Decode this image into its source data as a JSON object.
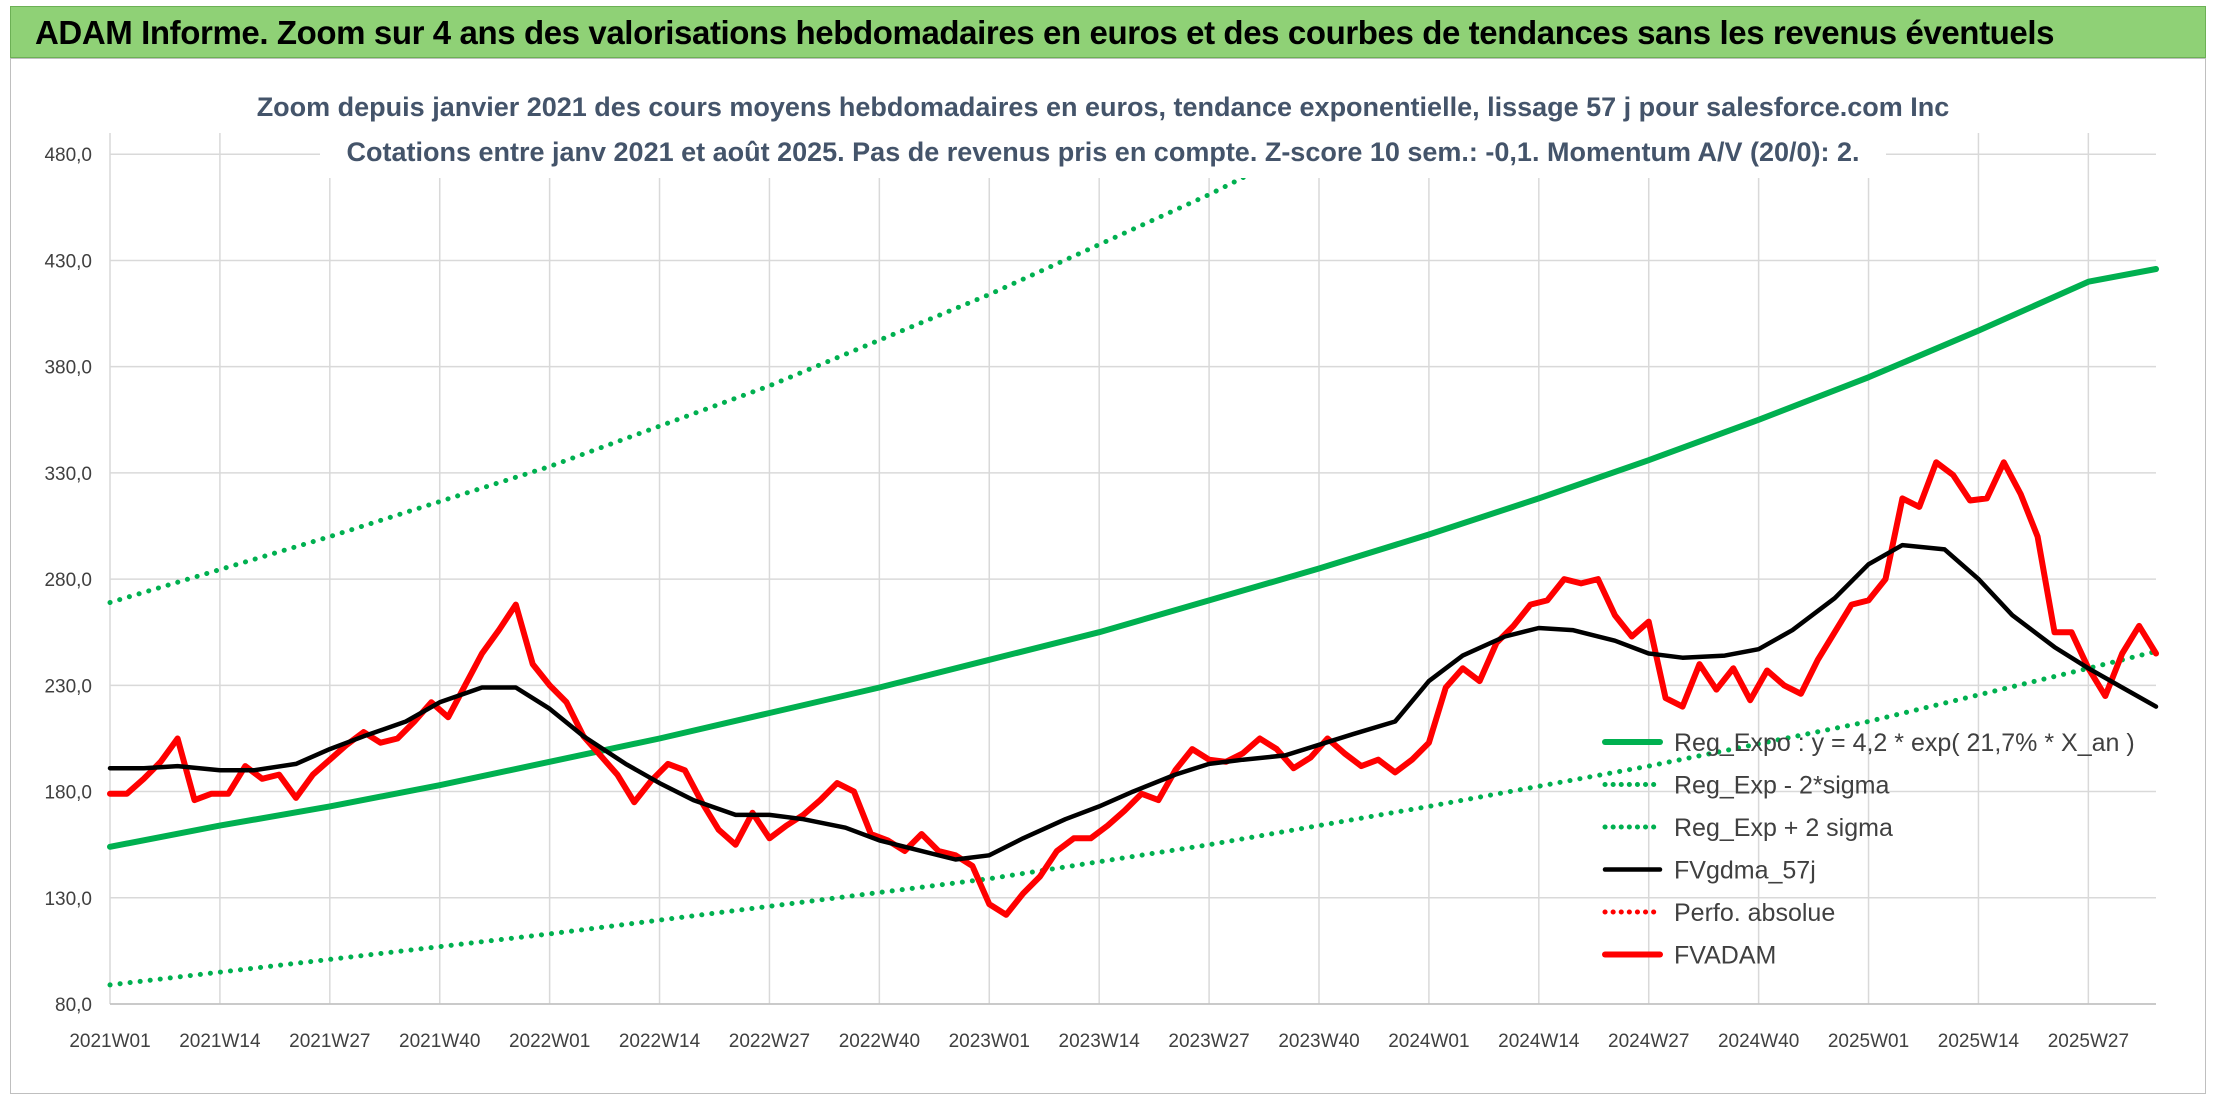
{
  "header": {
    "title": "ADAM Informe. Zoom sur 4 ans des valorisations hebdomadaires en euros et des courbes de tendances sans les revenus éventuels"
  },
  "colors": {
    "header_bg": "#8fd176",
    "reg_expo": "#00b050",
    "fvgdma": "#000000",
    "fvadam": "#ff0000",
    "perfo": "#ff0000",
    "subtitle": "#44546a"
  },
  "chart_data": {
    "type": "line",
    "title_line1": "Zoom depuis janvier 2021 des cours moyens hebdomadaires en euros, tendance exponentielle, lissage 57 j pour salesforce.com Inc",
    "title_line2": "Cotations entre janv 2021 et août 2025. Pas de revenus pris en compte. Z-score 10 sem.: -0,1. Momentum A/V (20/0): 2.",
    "x_ticks": [
      "2021W01",
      "2021W14",
      "2021W27",
      "2021W40",
      "2022W01",
      "2022W14",
      "2022W27",
      "2022W40",
      "2023W01",
      "2023W14",
      "2023W27",
      "2023W40",
      "2024W01",
      "2024W14",
      "2024W27",
      "2024W40",
      "2025W01",
      "2025W14",
      "2025W27"
    ],
    "y_ticks": [
      "80,0",
      "130,0",
      "180,0",
      "230,0",
      "280,0",
      "330,0",
      "380,0",
      "430,0",
      "480,0"
    ],
    "ylim": [
      80,
      490
    ],
    "grid": true,
    "legend_position": "bottom-right",
    "series": [
      {
        "name": "Reg_Expo : y = 4,2 * exp( 21,7% *  X_an )",
        "style": "solid-thick",
        "color": "#00b050",
        "points": [
          [
            0,
            154
          ],
          [
            13,
            164
          ],
          [
            26,
            173
          ],
          [
            39,
            183
          ],
          [
            52,
            194
          ],
          [
            65,
            205
          ],
          [
            78,
            217
          ],
          [
            91,
            229
          ],
          [
            104,
            242
          ],
          [
            117,
            255
          ],
          [
            130,
            270
          ],
          [
            143,
            285
          ],
          [
            156,
            301
          ],
          [
            169,
            318
          ],
          [
            182,
            336
          ],
          [
            195,
            355
          ],
          [
            208,
            375
          ],
          [
            221,
            397
          ],
          [
            234,
            420
          ],
          [
            242,
            426
          ]
        ]
      },
      {
        "name": "Reg_Exp - 2*sigma",
        "style": "dotted",
        "color": "#00b050",
        "points": [
          [
            0,
            89
          ],
          [
            26,
            101
          ],
          [
            52,
            113
          ],
          [
            78,
            126
          ],
          [
            104,
            139
          ],
          [
            130,
            155
          ],
          [
            156,
            173
          ],
          [
            182,
            192
          ],
          [
            208,
            213
          ],
          [
            234,
            238
          ],
          [
            242,
            246
          ]
        ]
      },
      {
        "name": "Reg_Exp + 2 sigma",
        "style": "dotted",
        "color": "#00b050",
        "points": [
          [
            0,
            269
          ],
          [
            26,
            300
          ],
          [
            52,
            333
          ],
          [
            78,
            371
          ],
          [
            104,
            414
          ],
          [
            130,
            461
          ],
          [
            139,
            479
          ],
          [
            150,
            500
          ],
          [
            176,
            500
          ],
          [
            200,
            500
          ],
          [
            242,
            500
          ]
        ]
      },
      {
        "name": "FVgdma_57j",
        "style": "solid",
        "color": "#000000",
        "points": [
          [
            0,
            191
          ],
          [
            4,
            191
          ],
          [
            8,
            192
          ],
          [
            13,
            190
          ],
          [
            17,
            190
          ],
          [
            22,
            193
          ],
          [
            26,
            200
          ],
          [
            30,
            206
          ],
          [
            35,
            213
          ],
          [
            39,
            222
          ],
          [
            44,
            229
          ],
          [
            48,
            229
          ],
          [
            52,
            219
          ],
          [
            56,
            206
          ],
          [
            61,
            193
          ],
          [
            65,
            184
          ],
          [
            69,
            176
          ],
          [
            74,
            169
          ],
          [
            78,
            169
          ],
          [
            82,
            167
          ],
          [
            87,
            163
          ],
          [
            91,
            157
          ],
          [
            95,
            153
          ],
          [
            100,
            148
          ],
          [
            104,
            150
          ],
          [
            108,
            158
          ],
          [
            113,
            167
          ],
          [
            117,
            173
          ],
          [
            121,
            180
          ],
          [
            126,
            188
          ],
          [
            130,
            193
          ],
          [
            134,
            195
          ],
          [
            139,
            197
          ],
          [
            143,
            202
          ],
          [
            147,
            207
          ],
          [
            152,
            213
          ],
          [
            156,
            232
          ],
          [
            160,
            244
          ],
          [
            165,
            253
          ],
          [
            169,
            257
          ],
          [
            173,
            256
          ],
          [
            178,
            251
          ],
          [
            182,
            245
          ],
          [
            186,
            243
          ],
          [
            191,
            244
          ],
          [
            195,
            247
          ],
          [
            199,
            256
          ],
          [
            204,
            271
          ],
          [
            208,
            287
          ],
          [
            212,
            296
          ],
          [
            217,
            294
          ],
          [
            221,
            280
          ],
          [
            225,
            263
          ],
          [
            230,
            248
          ],
          [
            234,
            238
          ],
          [
            238,
            229
          ],
          [
            242,
            220
          ]
        ]
      },
      {
        "name": "Perfo. absolue",
        "style": "dotted",
        "color": "#ff0000",
        "points": []
      },
      {
        "name": "FVADAM",
        "style": "solid-thick",
        "color": "#ff0000",
        "points": [
          [
            0,
            179
          ],
          [
            2,
            179
          ],
          [
            4,
            186
          ],
          [
            6,
            194
          ],
          [
            8,
            205
          ],
          [
            10,
            176
          ],
          [
            12,
            179
          ],
          [
            14,
            179
          ],
          [
            16,
            192
          ],
          [
            18,
            186
          ],
          [
            20,
            188
          ],
          [
            22,
            177
          ],
          [
            24,
            188
          ],
          [
            26,
            195
          ],
          [
            28,
            202
          ],
          [
            30,
            208
          ],
          [
            32,
            203
          ],
          [
            34,
            205
          ],
          [
            36,
            213
          ],
          [
            38,
            222
          ],
          [
            40,
            215
          ],
          [
            42,
            230
          ],
          [
            44,
            245
          ],
          [
            46,
            256
          ],
          [
            48,
            268
          ],
          [
            50,
            240
          ],
          [
            52,
            230
          ],
          [
            54,
            222
          ],
          [
            56,
            206
          ],
          [
            58,
            197
          ],
          [
            60,
            188
          ],
          [
            62,
            175
          ],
          [
            64,
            185
          ],
          [
            66,
            193
          ],
          [
            68,
            190
          ],
          [
            70,
            175
          ],
          [
            72,
            162
          ],
          [
            74,
            155
          ],
          [
            76,
            170
          ],
          [
            78,
            158
          ],
          [
            80,
            164
          ],
          [
            82,
            169
          ],
          [
            84,
            176
          ],
          [
            86,
            184
          ],
          [
            88,
            180
          ],
          [
            90,
            160
          ],
          [
            92,
            157
          ],
          [
            94,
            152
          ],
          [
            96,
            160
          ],
          [
            98,
            152
          ],
          [
            100,
            150
          ],
          [
            102,
            145
          ],
          [
            104,
            127
          ],
          [
            106,
            122
          ],
          [
            108,
            132
          ],
          [
            110,
            140
          ],
          [
            112,
            152
          ],
          [
            114,
            158
          ],
          [
            116,
            158
          ],
          [
            118,
            164
          ],
          [
            120,
            171
          ],
          [
            122,
            179
          ],
          [
            124,
            176
          ],
          [
            126,
            190
          ],
          [
            128,
            200
          ],
          [
            130,
            195
          ],
          [
            132,
            194
          ],
          [
            134,
            198
          ],
          [
            136,
            205
          ],
          [
            138,
            200
          ],
          [
            140,
            191
          ],
          [
            142,
            196
          ],
          [
            144,
            205
          ],
          [
            146,
            198
          ],
          [
            148,
            192
          ],
          [
            150,
            195
          ],
          [
            152,
            189
          ],
          [
            154,
            195
          ],
          [
            156,
            203
          ],
          [
            158,
            229
          ],
          [
            160,
            238
          ],
          [
            162,
            232
          ],
          [
            164,
            250
          ],
          [
            166,
            258
          ],
          [
            168,
            268
          ],
          [
            170,
            270
          ],
          [
            172,
            280
          ],
          [
            174,
            278
          ],
          [
            176,
            280
          ],
          [
            178,
            263
          ],
          [
            180,
            253
          ],
          [
            182,
            260
          ],
          [
            184,
            224
          ],
          [
            186,
            220
          ],
          [
            188,
            240
          ],
          [
            190,
            228
          ],
          [
            192,
            238
          ],
          [
            194,
            223
          ],
          [
            196,
            237
          ],
          [
            198,
            230
          ],
          [
            200,
            226
          ],
          [
            202,
            242
          ],
          [
            204,
            255
          ],
          [
            206,
            268
          ],
          [
            208,
            270
          ],
          [
            210,
            280
          ],
          [
            212,
            318
          ],
          [
            214,
            314
          ],
          [
            216,
            335
          ],
          [
            218,
            329
          ],
          [
            220,
            317
          ],
          [
            222,
            318
          ],
          [
            224,
            335
          ],
          [
            226,
            320
          ],
          [
            228,
            300
          ],
          [
            230,
            255
          ],
          [
            232,
            255
          ],
          [
            234,
            238
          ],
          [
            236,
            225
          ],
          [
            238,
            245
          ],
          [
            240,
            258
          ],
          [
            242,
            245
          ]
        ]
      }
    ]
  }
}
